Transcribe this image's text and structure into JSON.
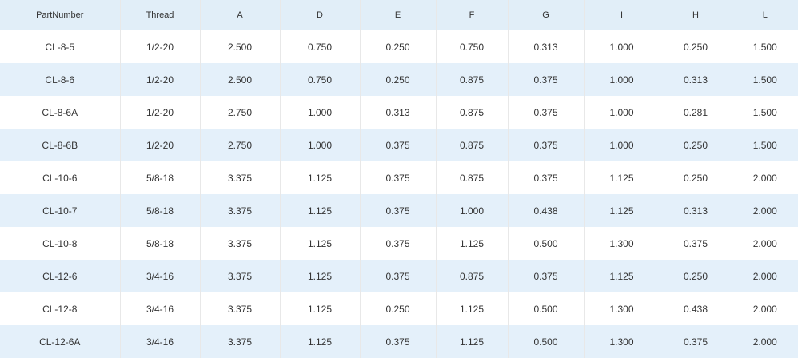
{
  "table": {
    "header": [
      "PartNumber",
      "Thread",
      "A",
      "D",
      "E",
      "F",
      "G",
      "I",
      "H",
      "L"
    ],
    "rows": [
      [
        "CL-8-5",
        "1/2-20",
        "2.500",
        "0.750",
        "0.250",
        "0.750",
        "0.313",
        "1.000",
        "0.250",
        "1.500"
      ],
      [
        "CL-8-6",
        "1/2-20",
        "2.500",
        "0.750",
        "0.250",
        "0.875",
        "0.375",
        "1.000",
        "0.313",
        "1.500"
      ],
      [
        "CL-8-6A",
        "1/2-20",
        "2.750",
        "1.000",
        "0.313",
        "0.875",
        "0.375",
        "1.000",
        "0.281",
        "1.500"
      ],
      [
        "CL-8-6B",
        "1/2-20",
        "2.750",
        "1.000",
        "0.375",
        "0.875",
        "0.375",
        "1.000",
        "0.250",
        "1.500"
      ],
      [
        "CL-10-6",
        "5/8-18",
        "3.375",
        "1.125",
        "0.375",
        "0.875",
        "0.375",
        "1.125",
        "0.250",
        "2.000"
      ],
      [
        "CL-10-7",
        "5/8-18",
        "3.375",
        "1.125",
        "0.375",
        "1.000",
        "0.438",
        "1.125",
        "0.313",
        "2.000"
      ],
      [
        "CL-10-8",
        "5/8-18",
        "3.375",
        "1.125",
        "0.375",
        "1.125",
        "0.500",
        "1.300",
        "0.375",
        "2.000"
      ],
      [
        "CL-12-6",
        "3/4-16",
        "3.375",
        "1.125",
        "0.375",
        "0.875",
        "0.375",
        "1.125",
        "0.250",
        "2.000"
      ],
      [
        "CL-12-8",
        "3/4-16",
        "3.375",
        "1.125",
        "0.250",
        "1.125",
        "0.500",
        "1.300",
        "0.438",
        "2.000"
      ],
      [
        "CL-12-6A",
        "3/4-16",
        "3.375",
        "1.125",
        "0.375",
        "1.125",
        "0.500",
        "1.300",
        "0.375",
        "2.000"
      ]
    ]
  }
}
